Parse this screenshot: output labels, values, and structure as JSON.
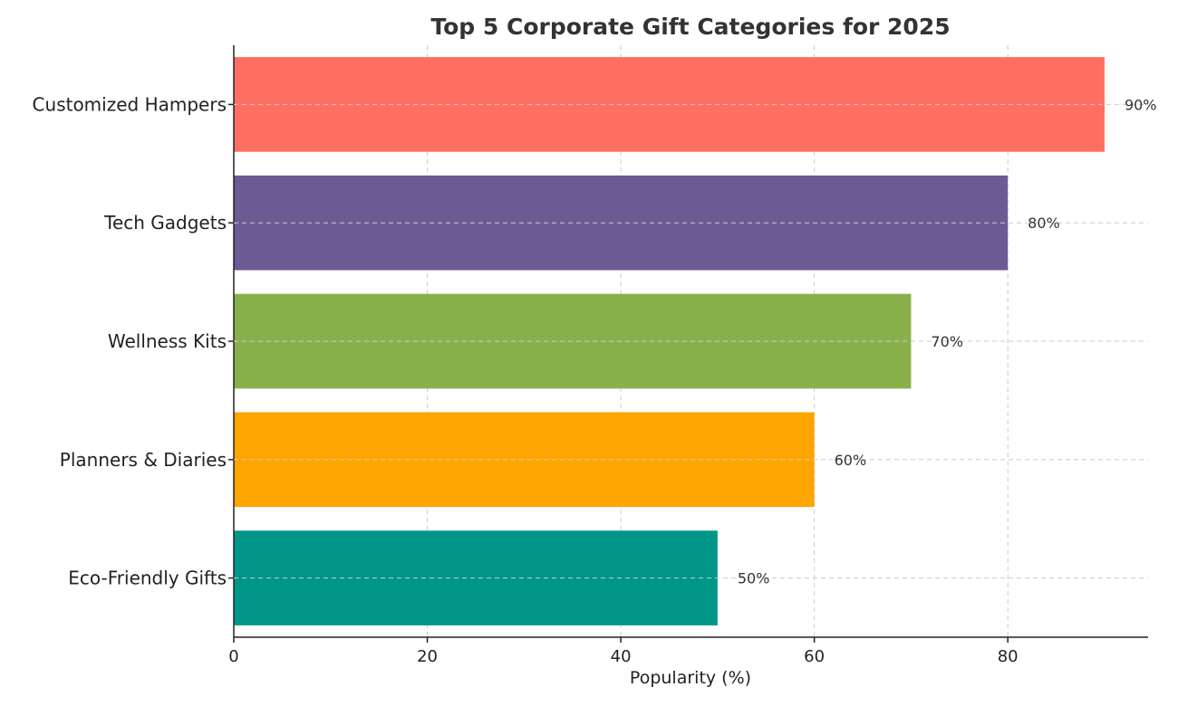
{
  "chart_data": {
    "type": "bar",
    "orientation": "horizontal",
    "title": "Top 5 Corporate Gift Categories for 2025",
    "xlabel": "Popularity (%)",
    "ylabel": "",
    "categories": [
      "Customized Hampers",
      "Tech Gadgets",
      "Wellness Kits",
      "Planners & Diaries",
      "Eco-Friendly Gifts"
    ],
    "values": [
      90,
      80,
      70,
      60,
      50
    ],
    "value_labels": [
      "90%",
      "80%",
      "70%",
      "60%",
      "50%"
    ],
    "colors": [
      "#FF6F61",
      "#6B5B95",
      "#88B04B",
      "#FFA500",
      "#009688"
    ],
    "xlim": [
      0,
      94.5
    ],
    "xticks": [
      0,
      20,
      40,
      60,
      80
    ],
    "grid": true
  }
}
